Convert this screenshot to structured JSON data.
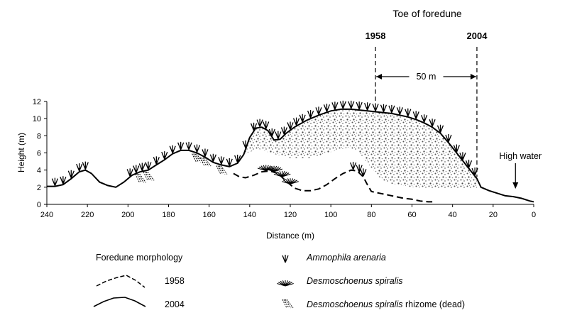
{
  "chart_data": {
    "type": "line",
    "xlabel": "Distance (m)",
    "ylabel": "Height (m)",
    "xlim": [
      240,
      0
    ],
    "ylim": [
      0,
      12
    ],
    "x_reversed": true,
    "x_ticks": [
      240,
      220,
      200,
      180,
      160,
      140,
      120,
      100,
      80,
      60,
      40,
      20,
      0
    ],
    "y_ticks": [
      0,
      2,
      4,
      6,
      8,
      10,
      12
    ],
    "grid": false,
    "series": [
      {
        "name": "2004",
        "style": "solid",
        "x": [
          240,
          236,
          232,
          228,
          224,
          221,
          218,
          214,
          210,
          206,
          202,
          198,
          194,
          190,
          186,
          182,
          178,
          174,
          170,
          166,
          162,
          158,
          154,
          150,
          146,
          143,
          140,
          137,
          134,
          131,
          128,
          125,
          122,
          118,
          112,
          106,
          100,
          95,
          90,
          86,
          82,
          78,
          74,
          70,
          66,
          62,
          58,
          54,
          50,
          46,
          42,
          38,
          34,
          30,
          28,
          26,
          22,
          18,
          14,
          10,
          6,
          2,
          0
        ],
        "y": [
          2.1,
          2.1,
          2.3,
          3.0,
          3.8,
          4.0,
          3.6,
          2.6,
          2.2,
          2.0,
          2.6,
          3.4,
          3.8,
          4.0,
          4.6,
          5.2,
          5.9,
          6.3,
          6.3,
          6.0,
          5.5,
          4.9,
          4.6,
          4.4,
          4.8,
          5.8,
          7.8,
          8.9,
          9.0,
          8.6,
          7.5,
          7.6,
          8.3,
          9.0,
          9.8,
          10.4,
          10.9,
          11.1,
          11.1,
          11.0,
          10.9,
          10.8,
          10.7,
          10.6,
          10.4,
          10.2,
          9.9,
          9.5,
          9.0,
          8.3,
          7.2,
          6.0,
          4.8,
          3.6,
          3.0,
          2.0,
          1.6,
          1.3,
          1.0,
          0.9,
          0.7,
          0.4,
          0.3
        ]
      },
      {
        "name": "1958",
        "style": "dashed",
        "x": [
          148,
          145,
          142,
          138,
          134,
          130,
          126,
          122,
          118,
          114,
          110,
          106,
          102,
          98,
          94,
          90,
          87,
          84,
          82,
          80,
          76,
          72,
          68,
          64,
          60,
          56,
          52,
          50
        ],
        "y": [
          3.6,
          3.2,
          3.1,
          3.4,
          3.8,
          3.9,
          3.6,
          2.7,
          1.9,
          1.6,
          1.6,
          1.8,
          2.3,
          3.0,
          3.6,
          4.0,
          3.9,
          3.2,
          2.3,
          1.5,
          1.3,
          1.1,
          0.9,
          0.7,
          0.6,
          0.4,
          0.3,
          0.3
        ]
      }
    ],
    "shaded_region_upper": {
      "x": [
        143,
        140,
        137,
        134,
        131,
        128,
        125,
        122,
        118,
        112,
        106,
        100,
        95,
        90,
        86,
        82,
        78,
        74,
        70,
        66,
        62,
        58,
        54,
        50,
        46,
        42,
        38,
        34,
        30,
        28
      ],
      "y": [
        5.8,
        7.8,
        8.9,
        9.0,
        8.6,
        7.5,
        7.6,
        8.3,
        9.0,
        9.8,
        10.4,
        10.9,
        11.1,
        11.1,
        11.0,
        10.9,
        10.8,
        10.7,
        10.6,
        10.4,
        10.2,
        9.9,
        9.5,
        9.0,
        8.3,
        7.2,
        6.0,
        4.8,
        3.6,
        3.0
      ]
    },
    "shaded_region_lower": {
      "x": [
        28,
        40,
        60,
        74,
        82,
        87,
        92,
        100,
        110,
        120,
        130,
        136,
        143
      ],
      "y": [
        1.8,
        1.8,
        2.0,
        2.6,
        4.8,
        6.3,
        6.6,
        6.1,
        5.4,
        5.4,
        6.0,
        6.5,
        5.8
      ]
    },
    "ammophila_x": [
      236,
      232,
      228,
      224,
      221,
      199,
      196,
      193,
      190,
      186,
      182,
      178,
      174,
      170,
      166,
      162,
      158,
      154,
      150,
      146,
      142,
      138,
      135,
      132,
      129,
      126,
      123,
      120,
      117,
      114,
      110,
      106,
      102,
      98,
      94,
      90,
      86,
      82,
      78,
      74,
      70,
      66,
      62,
      58,
      54,
      50,
      46,
      42,
      38,
      35,
      32,
      29
    ],
    "ammophila_on_1958_x": [
      89,
      86,
      84
    ],
    "desmoschoenus_x": [
      132,
      128,
      124,
      120
    ],
    "rhizome_x": [
      195,
      191,
      167,
      163,
      155
    ]
  },
  "annotations": {
    "toe_title": "Toe of foredune",
    "year_1958": "1958",
    "year_2004": "2004",
    "toe_1958_x": 78,
    "toe_2004_x": 28,
    "distance_label": "50 m",
    "high_water": "High water",
    "high_water_x": 9
  },
  "legend": {
    "morphology_title": "Foredune morphology",
    "line_1958": "1958",
    "line_2004": "2004",
    "ammophila": "Ammophila arenaria",
    "desmoschoenus": "Desmoschoenus spiralis",
    "rhizome_name": "Desmoschoenus spiralis",
    "rhizome_suffix": " rhizome (dead)"
  }
}
